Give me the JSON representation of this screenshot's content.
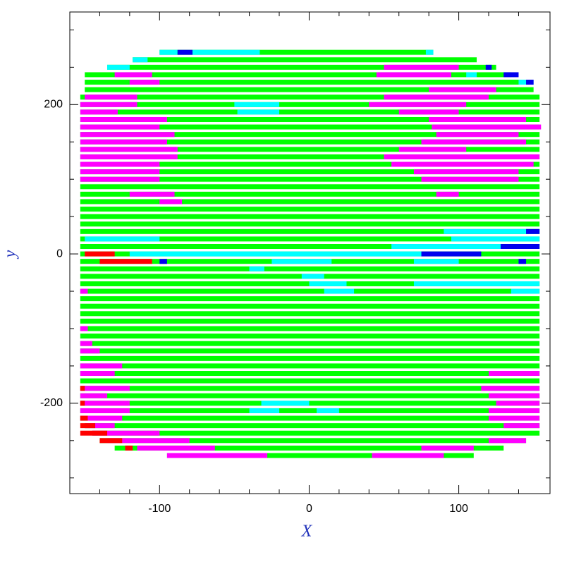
{
  "chart_data": {
    "type": "segments",
    "xlabel": "X",
    "ylabel": "y",
    "xlim": [
      -160,
      161
    ],
    "ylim": [
      -321,
      324
    ],
    "xticks": [
      -100,
      0,
      100
    ],
    "yticks": [
      -200,
      0,
      200
    ],
    "xminorticks": [
      -140,
      -120,
      -80,
      -60,
      -40,
      -20,
      20,
      40,
      60,
      80,
      120,
      140
    ],
    "yminorticks": [
      -300,
      -250,
      -150,
      -100,
      -50,
      50,
      100,
      150,
      250,
      300
    ],
    "series": [
      {
        "color": "#00ff00",
        "segments": [
          [
            -100,
            83,
            270
          ],
          [
            -118,
            112,
            260
          ],
          [
            -135,
            125,
            250
          ],
          [
            -150,
            135,
            240
          ],
          [
            -150,
            145,
            230
          ],
          [
            -150,
            150,
            220
          ],
          [
            -153,
            154,
            210
          ],
          [
            -153,
            154,
            200
          ],
          [
            -153,
            154,
            190
          ],
          [
            -153,
            154,
            180
          ],
          [
            -153,
            154,
            170
          ],
          [
            -153,
            154,
            160
          ],
          [
            -153,
            154,
            150
          ],
          [
            -153,
            154,
            140
          ],
          [
            -153,
            154,
            130
          ],
          [
            -153,
            154,
            120
          ],
          [
            -153,
            154,
            110
          ],
          [
            -153,
            154,
            100
          ],
          [
            -153,
            154,
            90
          ],
          [
            -153,
            154,
            80
          ],
          [
            -153,
            154,
            70
          ],
          [
            -153,
            154,
            60
          ],
          [
            -153,
            154,
            50
          ],
          [
            -153,
            154,
            40
          ],
          [
            -153,
            154,
            30
          ],
          [
            -153,
            154,
            20
          ],
          [
            -153,
            154,
            10
          ],
          [
            -153,
            154,
            0
          ],
          [
            -153,
            154,
            -10
          ],
          [
            -153,
            154,
            -20
          ],
          [
            -153,
            154,
            -30
          ],
          [
            -153,
            154,
            -40
          ],
          [
            -153,
            154,
            -50
          ],
          [
            -153,
            154,
            -60
          ],
          [
            -153,
            154,
            -70
          ],
          [
            -153,
            154,
            -80
          ],
          [
            -153,
            154,
            -90
          ],
          [
            -153,
            154,
            -100
          ],
          [
            -153,
            154,
            -110
          ],
          [
            -153,
            154,
            -120
          ],
          [
            -153,
            154,
            -130
          ],
          [
            -153,
            154,
            -140
          ],
          [
            -153,
            154,
            -150
          ],
          [
            -153,
            154,
            -160
          ],
          [
            -153,
            154,
            -170
          ],
          [
            -153,
            154,
            -180
          ],
          [
            -153,
            154,
            -190
          ],
          [
            -153,
            154,
            -200
          ],
          [
            -153,
            154,
            -210
          ],
          [
            -153,
            154,
            -220
          ],
          [
            -150,
            154,
            -230
          ],
          [
            -145,
            154,
            -240
          ],
          [
            -140,
            145,
            -250
          ],
          [
            -130,
            130,
            -260
          ],
          [
            -95,
            110,
            -270
          ]
        ]
      },
      {
        "color": "#ff00ff",
        "segments": [
          [
            -130,
            -105,
            240
          ],
          [
            -120,
            -100,
            230
          ],
          [
            -150,
            -115,
            210
          ],
          [
            -153,
            -115,
            200
          ],
          [
            -153,
            -128,
            190
          ],
          [
            -153,
            -95,
            180
          ],
          [
            -153,
            -100,
            170
          ],
          [
            -153,
            -90,
            160
          ],
          [
            -153,
            -95,
            150
          ],
          [
            -153,
            -88,
            140
          ],
          [
            -153,
            -88,
            130
          ],
          [
            -153,
            -100,
            120
          ],
          [
            -153,
            -100,
            110
          ],
          [
            -153,
            -100,
            100
          ],
          [
            -120,
            -90,
            80
          ],
          [
            -100,
            -85,
            70
          ],
          [
            50,
            100,
            250
          ],
          [
            45,
            95,
            240
          ],
          [
            80,
            125,
            220
          ],
          [
            50,
            120,
            210
          ],
          [
            40,
            105,
            200
          ],
          [
            60,
            100,
            190
          ],
          [
            80,
            145,
            180
          ],
          [
            82,
            155,
            170
          ],
          [
            85,
            140,
            160
          ],
          [
            75,
            145,
            150
          ],
          [
            60,
            105,
            140
          ],
          [
            50,
            154,
            130
          ],
          [
            55,
            150,
            120
          ],
          [
            70,
            140,
            110
          ],
          [
            75,
            140,
            100
          ],
          [
            85,
            100,
            80
          ],
          [
            -153,
            -140,
            -130
          ],
          [
            -153,
            -125,
            -150
          ],
          [
            -153,
            -130,
            -160
          ],
          [
            -153,
            -120,
            -180
          ],
          [
            -153,
            -135,
            -190
          ],
          [
            -153,
            -120,
            -200
          ],
          [
            -153,
            -120,
            -210
          ],
          [
            -153,
            -125,
            -220
          ],
          [
            -150,
            -130,
            -230
          ],
          [
            -145,
            -100,
            -240
          ],
          [
            -135,
            -80,
            -250
          ],
          [
            -115,
            -63,
            -260
          ],
          [
            -95,
            -28,
            -270
          ],
          [
            120,
            154,
            -160
          ],
          [
            115,
            154,
            -180
          ],
          [
            120,
            154,
            -190
          ],
          [
            125,
            154,
            -200
          ],
          [
            120,
            154,
            -210
          ],
          [
            120,
            154,
            -220
          ],
          [
            130,
            154,
            -230
          ],
          [
            120,
            145,
            -250
          ],
          [
            75,
            110,
            -260
          ],
          [
            42,
            90,
            -270
          ],
          [
            -153,
            -148,
            -50
          ],
          [
            -153,
            -148,
            -100
          ],
          [
            -153,
            -145,
            -120
          ]
        ]
      },
      {
        "color": "#00ffff",
        "segments": [
          [
            -100,
            -88,
            270
          ],
          [
            -78,
            -33,
            270
          ],
          [
            78,
            83,
            270
          ],
          [
            -118,
            -108,
            260
          ],
          [
            -135,
            -120,
            250
          ],
          [
            105,
            112,
            240
          ],
          [
            140,
            150,
            230
          ],
          [
            -50,
            -20,
            200
          ],
          [
            -48,
            -20,
            190
          ],
          [
            90,
            154,
            30
          ],
          [
            -150,
            -100,
            20
          ],
          [
            95,
            154,
            20
          ],
          [
            55,
            145,
            10
          ],
          [
            -120,
            75,
            0
          ],
          [
            -25,
            15,
            -10
          ],
          [
            70,
            100,
            -10
          ],
          [
            -40,
            -30,
            -20
          ],
          [
            -5,
            10,
            -30
          ],
          [
            0,
            25,
            -40
          ],
          [
            70,
            154,
            -40
          ],
          [
            10,
            30,
            -50
          ],
          [
            135,
            154,
            -50
          ],
          [
            -32,
            0,
            -200
          ],
          [
            5,
            20,
            -210
          ],
          [
            -40,
            -20,
            -210
          ]
        ]
      },
      {
        "color": "#0000ee",
        "segments": [
          [
            -88,
            -78,
            270
          ],
          [
            118,
            122,
            250
          ],
          [
            130,
            140,
            240
          ],
          [
            145,
            150,
            230
          ],
          [
            145,
            154,
            30
          ],
          [
            128,
            154,
            10
          ],
          [
            75,
            115,
            0
          ],
          [
            140,
            145,
            -10
          ],
          [
            -100,
            -95,
            -10
          ]
        ]
      },
      {
        "color": "#ff0000",
        "segments": [
          [
            -150,
            -130,
            0
          ],
          [
            -140,
            -105,
            -10
          ],
          [
            -153,
            -150,
            -180
          ],
          [
            -153,
            -150,
            -200
          ],
          [
            -153,
            -148,
            -220
          ],
          [
            -153,
            -143,
            -230
          ],
          [
            -153,
            -135,
            -240
          ],
          [
            -140,
            -125,
            -250
          ],
          [
            -123,
            -118,
            -260
          ]
        ]
      }
    ]
  }
}
